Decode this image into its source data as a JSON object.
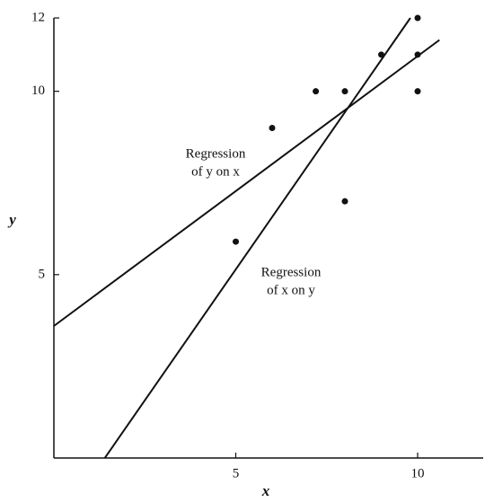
{
  "chart_data": {
    "type": "scatter",
    "x_label": "x",
    "y_label": "y",
    "xlim": [
      0,
      12
    ],
    "ylim": [
      0,
      12
    ],
    "xticks": [
      5,
      10
    ],
    "yticks": [
      5,
      10,
      12
    ],
    "color": "#111111",
    "points": {
      "x": [
        5,
        6,
        7.2,
        8,
        8,
        9,
        10,
        10,
        10
      ],
      "y": [
        5.9,
        9,
        10,
        10,
        7,
        11,
        12,
        11,
        10
      ]
    },
    "lines": [
      {
        "name": "Regression of y on x",
        "label_lines": [
          "Regression",
          "of y on x"
        ],
        "x": [
          0,
          10.6
        ],
        "y": [
          3.6,
          11.4
        ]
      },
      {
        "name": "Regression of x on y",
        "label_lines": [
          "Regression",
          "of x on y"
        ],
        "x": [
          1.4,
          9.8
        ],
        "y": [
          0,
          12
        ]
      }
    ]
  }
}
